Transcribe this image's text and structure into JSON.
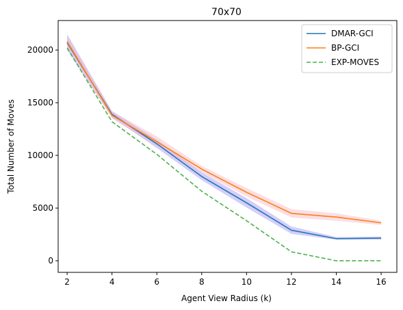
{
  "chart_data": {
    "type": "line",
    "title": "70x70",
    "xlabel": "Agent View Radius (k)",
    "ylabel": "Total Number of Moves",
    "x": [
      2,
      4,
      6,
      8,
      10,
      12,
      14,
      16
    ],
    "xlim": [
      1.6,
      16.7
    ],
    "ylim": [
      -1100,
      22800
    ],
    "xticks": [
      2,
      4,
      6,
      8,
      10,
      12,
      14,
      16
    ],
    "yticks": [
      0,
      5000,
      10000,
      15000,
      20000
    ],
    "grid": false,
    "legend_position": "top-right",
    "series": [
      {
        "name": "DMAR-GCI",
        "color": "#1f77b4",
        "band_color": "#9f92f2",
        "dash": "solid",
        "values": [
          20700,
          13900,
          11100,
          8000,
          5500,
          2900,
          2100,
          2150
        ],
        "lower": [
          20000,
          13600,
          10700,
          7650,
          5050,
          2550,
          2000,
          2000
        ],
        "upper": [
          21500,
          14200,
          11500,
          8400,
          5950,
          3250,
          2250,
          2300
        ]
      },
      {
        "name": "BP-GCI",
        "color": "#ff7f0e",
        "band_color": "#f7b5c3",
        "dash": "solid",
        "values": [
          20800,
          13800,
          11300,
          8700,
          6500,
          4500,
          4150,
          3600
        ],
        "lower": [
          20300,
          13500,
          10900,
          8400,
          6100,
          4100,
          3800,
          3400
        ],
        "upper": [
          21300,
          14200,
          11800,
          9000,
          6900,
          4900,
          4500,
          3800
        ]
      },
      {
        "name": "EXP-MOVES",
        "color": "#4daf4a",
        "dash": "dashed",
        "values": [
          20200,
          13200,
          10100,
          6600,
          3800,
          850,
          0,
          0
        ]
      }
    ]
  }
}
